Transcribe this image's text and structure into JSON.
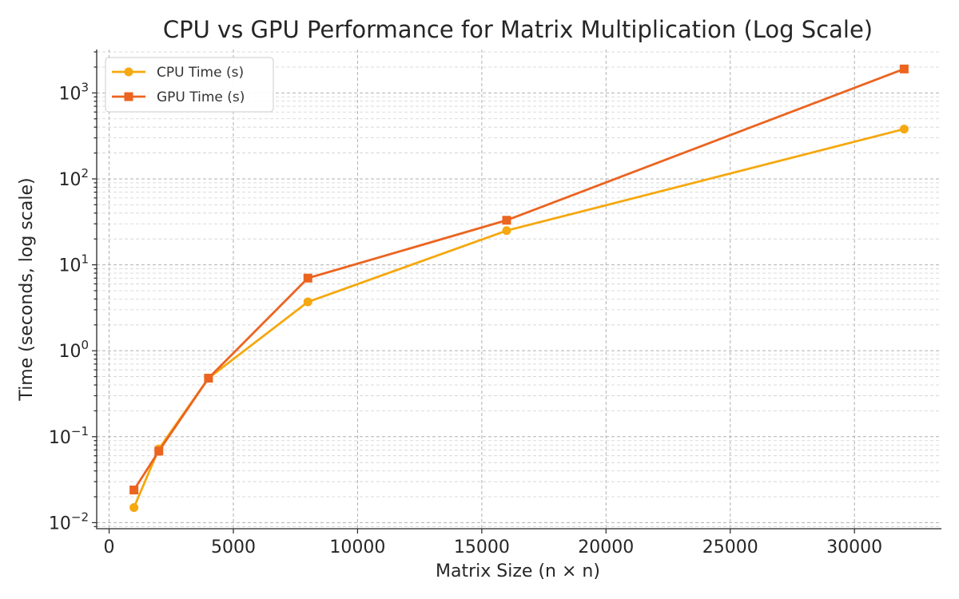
{
  "chart_data": {
    "type": "line",
    "title": "CPU vs GPU Performance for Matrix Multiplication (Log Scale)",
    "xlabel": "Matrix Size (n × n)",
    "ylabel": "Time (seconds, log scale)",
    "x": [
      1000,
      2000,
      4000,
      8000,
      16000,
      32000
    ],
    "xlim": [
      -500,
      33500
    ],
    "ylim": [
      0.0085,
      3200
    ],
    "yscale": "log",
    "grid": "major and minor, dashed",
    "legend_position": "top-left",
    "x_ticks": [
      0,
      5000,
      10000,
      15000,
      20000,
      25000,
      30000
    ],
    "x_tick_labels": [
      "0",
      "5000",
      "10000",
      "15000",
      "20000",
      "25000",
      "30000"
    ],
    "y_ticks": [
      0.01,
      0.1,
      1,
      10,
      100,
      1000
    ],
    "y_tick_labels": [
      {
        "base": "10",
        "exp": "−2"
      },
      {
        "base": "10",
        "exp": "−1"
      },
      {
        "base": "10",
        "exp": "0"
      },
      {
        "base": "10",
        "exp": "1"
      },
      {
        "base": "10",
        "exp": "2"
      },
      {
        "base": "10",
        "exp": "3"
      }
    ],
    "series": [
      {
        "name": "CPU Time (s)",
        "color": "#F5A80F",
        "marker": "circle",
        "values": [
          0.015,
          0.072,
          0.48,
          3.7,
          25,
          380
        ]
      },
      {
        "name": "GPU Time (s)",
        "color": "#EB6420",
        "marker": "square",
        "values": [
          0.024,
          0.068,
          0.48,
          7.0,
          33,
          1900
        ]
      }
    ]
  }
}
